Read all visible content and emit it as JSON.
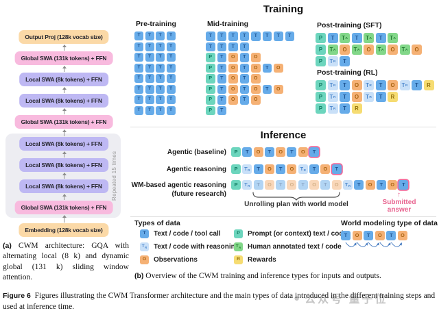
{
  "architecture": {
    "layers_top": [
      {
        "label": "Output Proj (128k vocab size)",
        "type": "embed"
      },
      {
        "label": "Global SWA (131k tokens) + FFN",
        "type": "global"
      },
      {
        "label": "Local SWA (8k tokens) + FFN",
        "type": "local"
      },
      {
        "label": "Local SWA (8k tokens) + FFN",
        "type": "local"
      },
      {
        "label": "Global SWA (131k tokens) + FFN",
        "type": "global"
      }
    ],
    "repeat_label": "Repeated 15 times",
    "layers_repeated": [
      {
        "label": "Local SWA (8k tokens) + FFN",
        "type": "local"
      },
      {
        "label": "Local SWA (8k tokens) + FFN",
        "type": "local"
      },
      {
        "label": "Local SWA (8k tokens) + FFN",
        "type": "local"
      },
      {
        "label": "Global SWA (131k tokens) + FFN",
        "type": "global"
      }
    ],
    "layer_bottom": {
      "label": "Embedding (128k vocab size)",
      "type": "embed"
    }
  },
  "training": {
    "title": "Training",
    "groups": [
      {
        "label": "Pre-training",
        "rows": [
          [
            "T",
            "T",
            "T",
            "T"
          ],
          [
            "T",
            "T",
            "T",
            "T"
          ],
          [
            "T",
            "T",
            "T",
            "T"
          ],
          [
            "T",
            "T",
            "T",
            "T"
          ],
          [
            "T",
            "T",
            "T",
            "T"
          ],
          [
            "T",
            "T",
            "T",
            "T"
          ],
          [
            "T",
            "T",
            "T",
            "T"
          ],
          [
            "T",
            "T",
            "T",
            "T"
          ]
        ]
      },
      {
        "label": "Mid-training",
        "rows": [
          [
            "T",
            "T",
            "T",
            "T",
            "T",
            "T",
            "T",
            "T"
          ],
          [
            "T",
            "T",
            "T",
            "T"
          ],
          [
            "P",
            "T",
            "O",
            "T",
            "O"
          ],
          [
            "P",
            "T",
            "O",
            "T",
            "O",
            "T",
            "O"
          ],
          [
            "P",
            "T",
            "O",
            "T",
            "O"
          ],
          [
            "P",
            "T",
            "O",
            "T",
            "O",
            "T",
            "O"
          ],
          [
            "P",
            "T",
            "O",
            "T",
            "O"
          ],
          [
            "P",
            "T"
          ]
        ]
      },
      {
        "label": "Post-training (SFT)",
        "rows": [
          [
            "P",
            "T",
            "TA",
            "T",
            "TA",
            "T",
            "TA"
          ],
          [
            "P",
            "TA",
            "O",
            "TA",
            "O",
            "TA",
            "O",
            "TA",
            "O"
          ],
          [
            "P",
            "TR",
            "T"
          ]
        ]
      },
      {
        "label": "Post-training (RL)",
        "rows": [
          [
            "P",
            "TR",
            "T",
            "O",
            "TR",
            "T",
            "O",
            "TR",
            "T",
            "R"
          ],
          [
            "P",
            "TR",
            "T",
            "O",
            "TR",
            "T",
            "R"
          ],
          [
            "P",
            "TR",
            "T",
            "R"
          ]
        ]
      }
    ]
  },
  "inference": {
    "title": "Inference",
    "rows": [
      {
        "label": "Agentic (baseline)",
        "sublabel": "",
        "tokens": [
          "P",
          "T",
          "O",
          "T",
          "O",
          "T",
          "O",
          "T!"
        ]
      },
      {
        "label": "Agentic reasoning",
        "sublabel": "",
        "tokens": [
          "P",
          "TR",
          "T",
          "O",
          "T",
          "O",
          "TR",
          "T",
          "O",
          "T!"
        ]
      },
      {
        "label": "WM-based agentic reasoning",
        "sublabel": "(future research)",
        "tokens": [
          "P",
          "TR",
          "~T",
          "~O",
          "~T",
          "~O",
          "~T",
          "~O",
          "~T",
          "~O",
          "TR",
          "T",
          "O",
          "T",
          "O",
          "T!"
        ]
      }
    ],
    "brace_label": "Unrolling plan with world model",
    "submitted_label_line1": "Submitted",
    "submitted_label_line2": "answer"
  },
  "legend": {
    "title": "Types of data",
    "columns": [
      [
        {
          "code": "T",
          "label": "Text / code / tool call"
        },
        {
          "code": "TR",
          "label": "Text / code with reasoning"
        },
        {
          "code": "O",
          "label": "Observations"
        }
      ],
      [
        {
          "code": "P",
          "label": "Prompt (or context) text / code"
        },
        {
          "code": "TA",
          "label": "Human annotated text / code"
        },
        {
          "code": "R",
          "label": "Rewards"
        }
      ]
    ]
  },
  "world_modeling": {
    "title": "World modeling type of data",
    "tokens": [
      "T",
      "O",
      "T",
      "O",
      "T",
      "O"
    ]
  },
  "captions": {
    "a_tag": "(a)",
    "a_text": "CWM architecture: GQA with alternating local (8 k) and dynamic global (131 k) sliding window attention.",
    "b_tag": "(b)",
    "b_text": "Overview of the CWM training and inference types for inputs and outputs.",
    "fig_tag": "Figure 6",
    "fig_text": "Figures illustrating the CWM Transformer architecture and the main types of data introduced in the different training steps and used at inference time."
  },
  "watermark": "公众号 量子位",
  "colors": {
    "token_text": {
      "bg": "#66abe9",
      "fg": "#1c5291"
    },
    "token_reasoning": {
      "bg": "#c9e0f8",
      "fg": "#4a86cc"
    },
    "token_observation": {
      "bg": "#f5b175",
      "fg": "#a8620f"
    },
    "token_prompt": {
      "bg": "#6cd5bd",
      "fg": "#0f7a61"
    },
    "token_annotated": {
      "bg": "#82d789",
      "fg": "#20762f"
    },
    "token_reward": {
      "bg": "#f6dc72",
      "fg": "#8f6c08"
    },
    "submitted_outline": "#ef6a9b",
    "submitted_text": "#e8638f",
    "layer_local": "#beb8f3",
    "layer_global": "#f8bade",
    "layer_embed": "#fbd9a7"
  }
}
